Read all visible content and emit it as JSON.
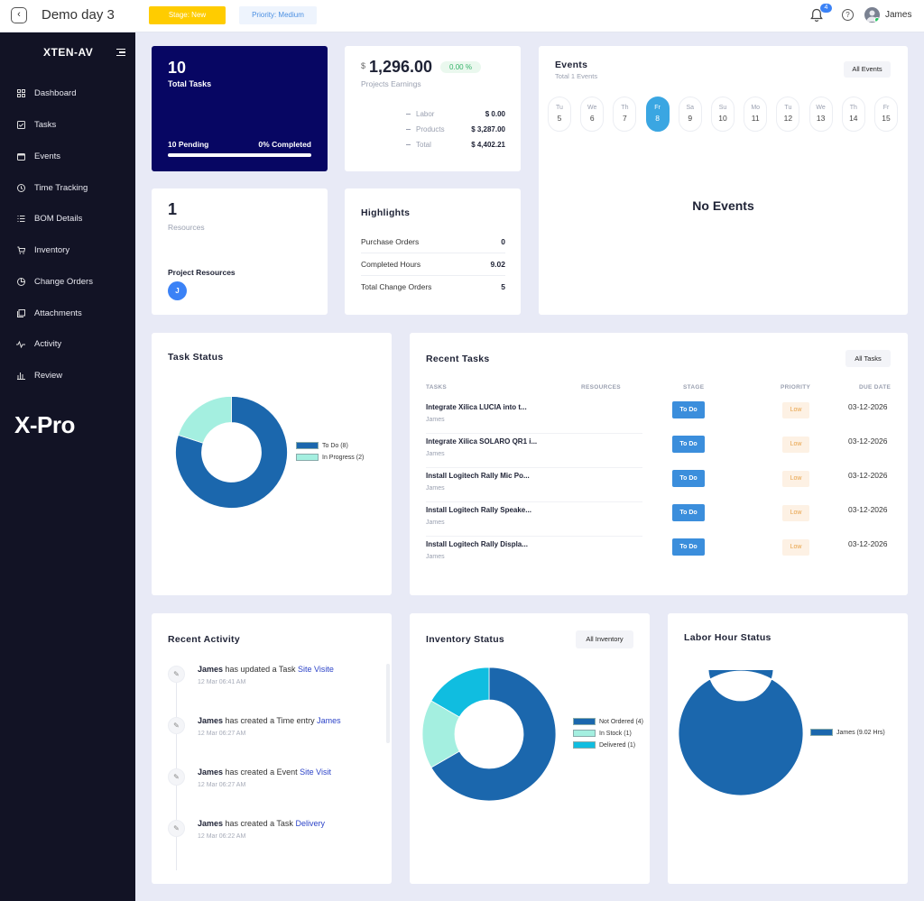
{
  "header": {
    "back_icon": "chevron-left-icon",
    "title": "Demo day 3",
    "stage": "Stage: New",
    "priority": "Priority: Medium",
    "notification_count": "4",
    "user_name": "James",
    "colors": {
      "stage": "#ffcc00",
      "priority_text": "#4a8fe2"
    }
  },
  "sidebar": {
    "brand": "XTEN-AV",
    "items": [
      {
        "label": "Dashboard",
        "icon": "grid-icon"
      },
      {
        "label": "Tasks",
        "icon": "checkbox-icon"
      },
      {
        "label": "Events",
        "icon": "calendar-icon"
      },
      {
        "label": "Time Tracking",
        "icon": "clock-icon"
      },
      {
        "label": "BOM Details",
        "icon": "list-icon"
      },
      {
        "label": "Inventory",
        "icon": "cart-icon"
      },
      {
        "label": "Change Orders",
        "icon": "pie-icon"
      },
      {
        "label": "Attachments",
        "icon": "attachment-icon"
      },
      {
        "label": "Activity",
        "icon": "pulse-icon"
      },
      {
        "label": "Review",
        "icon": "bar-chart-icon"
      }
    ],
    "logo": "X-Pro"
  },
  "tasks_card": {
    "count": "10",
    "label": "Total Tasks",
    "pending": "10 Pending",
    "completed": "0% Completed",
    "progress": 0
  },
  "earnings_card": {
    "currency": "$",
    "amount": "1,296.00",
    "change": "0.00 %",
    "label": "Projects Earnings",
    "rows": [
      {
        "label": "Labor",
        "value": "$ 0.00"
      },
      {
        "label": "Products",
        "value": "$ 3,287.00"
      },
      {
        "label": "Total",
        "value": "$ 4,402.21"
      }
    ]
  },
  "events_card": {
    "title": "Events",
    "subtitle": "Total 1 Events",
    "button": "All Events",
    "days": [
      {
        "name": "Tu",
        "date": "5"
      },
      {
        "name": "We",
        "date": "6"
      },
      {
        "name": "Th",
        "date": "7"
      },
      {
        "name": "Fr",
        "date": "8"
      },
      {
        "name": "Sa",
        "date": "9"
      },
      {
        "name": "Su",
        "date": "10"
      },
      {
        "name": "Mo",
        "date": "11"
      },
      {
        "name": "Tu",
        "date": "12"
      },
      {
        "name": "We",
        "date": "13"
      },
      {
        "name": "Th",
        "date": "14"
      },
      {
        "name": "Fr",
        "date": "15"
      }
    ],
    "active_day": "8",
    "empty": "No Events"
  },
  "resources_card": {
    "count": "1",
    "label": "Resources",
    "section": "Project Resources",
    "avatar": "J"
  },
  "highlights_card": {
    "title": "Highlights",
    "rows": [
      {
        "label": "Purchase Orders",
        "value": "0"
      },
      {
        "label": "Completed Hours",
        "value": "9.02"
      },
      {
        "label": "Total Change Orders",
        "value": "5"
      }
    ]
  },
  "task_status": {
    "title": "Task Status",
    "chart_data": {
      "type": "pie",
      "categories": [
        "To Do (8)",
        "In Progress (2)"
      ],
      "values": [
        8,
        2
      ],
      "colors": [
        "#1b67ad",
        "#a4efe0"
      ],
      "legend": "right"
    }
  },
  "recent_tasks": {
    "title": "Recent Tasks",
    "button": "All Tasks",
    "columns": [
      "TASKS",
      "RESOURCES",
      "STAGE",
      "PRIORITY",
      "DUE DATE"
    ],
    "rows": [
      {
        "name": "Integrate Xilica LUCIA into t...",
        "resource": "James",
        "stage": "To Do",
        "priority": "Low",
        "due": "03-12-2026"
      },
      {
        "name": "Integrate Xilica SOLARO QR1 i...",
        "resource": "James",
        "stage": "To Do",
        "priority": "Low",
        "due": "03-12-2026"
      },
      {
        "name": "Install Logitech Rally Mic Po...",
        "resource": "James",
        "stage": "To Do",
        "priority": "Low",
        "due": "03-12-2026"
      },
      {
        "name": "Install Logitech Rally Speake...",
        "resource": "James",
        "stage": "To Do",
        "priority": "Low",
        "due": "03-12-2026"
      },
      {
        "name": "Install Logitech Rally Displa...",
        "resource": "James",
        "stage": "To Do",
        "priority": "Low",
        "due": "03-12-2026"
      }
    ]
  },
  "recent_activity": {
    "title": "Recent Activity",
    "items": [
      {
        "user": "James",
        "action": "has updated a Task",
        "target": "Site Visite",
        "time": "12 Mar 06:41 AM"
      },
      {
        "user": "James",
        "action": "has created a Time entry",
        "target": "James",
        "time": "12 Mar 06:27 AM"
      },
      {
        "user": "James",
        "action": "has created a Event",
        "target": "Site Visit",
        "time": "12 Mar 06:27 AM"
      },
      {
        "user": "James",
        "action": "has created a Task",
        "target": "Delivery",
        "time": "12 Mar 06:22 AM"
      }
    ]
  },
  "inventory_status": {
    "title": "Inventory Status",
    "button": "All Inventory",
    "chart_data": {
      "type": "pie",
      "categories": [
        "Not Ordered (4)",
        "In Stock (1)",
        "Delivered (1)"
      ],
      "values": [
        4,
        1,
        1
      ],
      "colors": [
        "#1b67ad",
        "#a4efe0",
        "#10bde0"
      ],
      "legend": "right"
    }
  },
  "labor_status": {
    "title": "Labor Hour Status",
    "chart_data": {
      "type": "pie",
      "categories": [
        "James  (9.02 Hrs)"
      ],
      "values": [
        9.02
      ],
      "colors": [
        "#1b67ad"
      ],
      "legend": "right"
    }
  }
}
